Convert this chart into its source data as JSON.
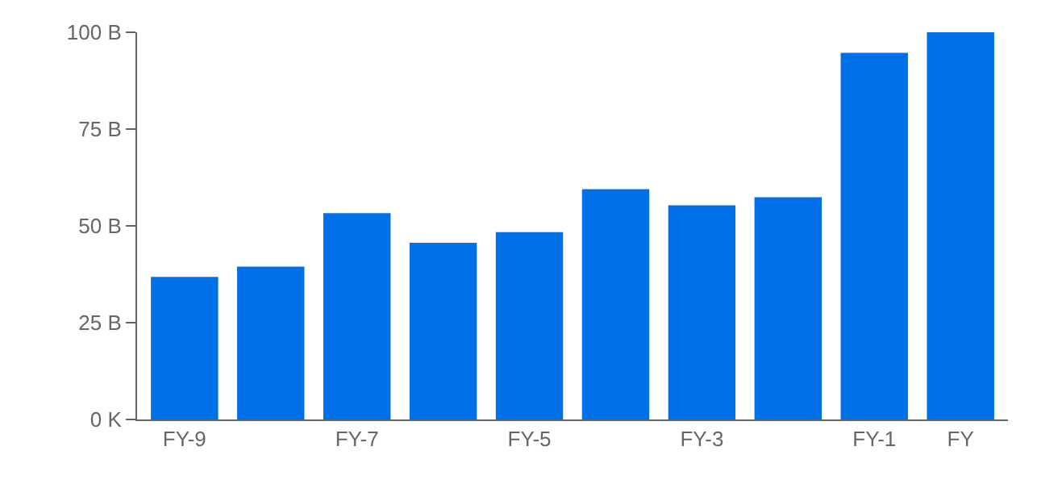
{
  "chart_data": {
    "type": "bar",
    "categories": [
      "FY-9",
      null,
      "FY-7",
      null,
      "FY-5",
      null,
      "FY-3",
      null,
      "FY-1",
      "FY"
    ],
    "values": [
      36.8,
      39.5,
      53.3,
      45.6,
      48.4,
      59.5,
      55.3,
      57.4,
      94.7,
      100
    ],
    "color": "#0070e8",
    "ylim": [
      0,
      100
    ],
    "yticks": [
      {
        "value": 0,
        "label": "0 K"
      },
      {
        "value": 25,
        "label": "25 B"
      },
      {
        "value": 50,
        "label": "50 B"
      },
      {
        "value": 75,
        "label": "75 B"
      },
      {
        "value": 100,
        "label": "100 B"
      }
    ]
  }
}
